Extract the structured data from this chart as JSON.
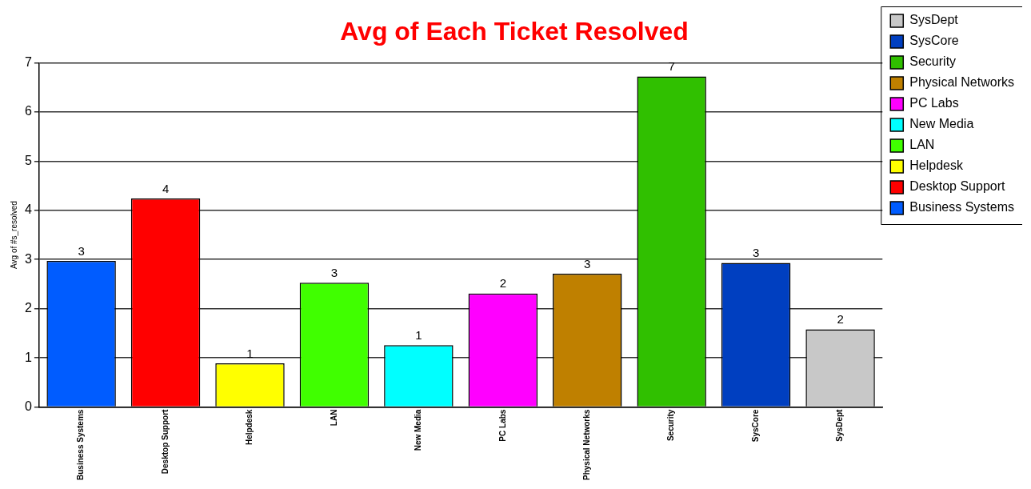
{
  "chart_data": {
    "type": "bar",
    "title": "Avg of Each Ticket Resolved",
    "ylabel": "Avg of #s_resolved",
    "categories": [
      "Business Systems",
      "Desktop Support",
      "Helpdesk",
      "LAN",
      "New Media",
      "PC Labs",
      "Physical Networks",
      "Security",
      "SysCore",
      "SysDept"
    ],
    "series": [
      {
        "name": "Business Systems",
        "color": "#005cff",
        "values": [
          2.97,
          null,
          null,
          null,
          null,
          null,
          null,
          null,
          null,
          null
        ],
        "value_labels": [
          "3",
          null,
          null,
          null,
          null,
          null,
          null,
          null,
          null,
          null
        ]
      },
      {
        "name": "Desktop Support",
        "color": "#ff0000",
        "values": [
          null,
          4.24,
          null,
          null,
          null,
          null,
          null,
          null,
          null,
          null
        ],
        "value_labels": [
          null,
          "4",
          null,
          null,
          null,
          null,
          null,
          null,
          null,
          null
        ]
      },
      {
        "name": "Helpdesk",
        "color": "#ffff00",
        "values": [
          null,
          null,
          0.89,
          null,
          null,
          null,
          null,
          null,
          null,
          null
        ],
        "value_labels": [
          null,
          null,
          "1",
          null,
          null,
          null,
          null,
          null,
          null,
          null
        ]
      },
      {
        "name": "LAN",
        "color": "#40ff00",
        "values": [
          null,
          null,
          null,
          2.53,
          null,
          null,
          null,
          null,
          null,
          null
        ],
        "value_labels": [
          null,
          null,
          null,
          "3",
          null,
          null,
          null,
          null,
          null,
          null
        ]
      },
      {
        "name": "New Media",
        "color": "#00ffff",
        "values": [
          null,
          null,
          null,
          null,
          1.26,
          null,
          null,
          null,
          null,
          null
        ],
        "value_labels": [
          null,
          null,
          null,
          null,
          "1",
          null,
          null,
          null,
          null,
          null
        ]
      },
      {
        "name": "PC Labs",
        "color": "#ff00ff",
        "values": [
          null,
          null,
          null,
          null,
          null,
          2.31,
          null,
          null,
          null,
          null
        ],
        "value_labels": [
          null,
          null,
          null,
          null,
          null,
          "2",
          null,
          null,
          null,
          null
        ]
      },
      {
        "name": "Physical Networks",
        "color": "#bf8000",
        "values": [
          null,
          null,
          null,
          null,
          null,
          null,
          2.71,
          null,
          null,
          null
        ],
        "value_labels": [
          null,
          null,
          null,
          null,
          null,
          null,
          "3",
          null,
          null,
          null
        ]
      },
      {
        "name": "Security",
        "color": "#30c000",
        "values": [
          null,
          null,
          null,
          null,
          null,
          null,
          null,
          6.72,
          null,
          null
        ],
        "value_labels": [
          null,
          null,
          null,
          null,
          null,
          null,
          null,
          "7",
          null,
          null
        ]
      },
      {
        "name": "SysCore",
        "color": "#003fc0",
        "values": [
          null,
          null,
          null,
          null,
          null,
          null,
          null,
          null,
          2.93,
          null
        ],
        "value_labels": [
          null,
          null,
          null,
          null,
          null,
          null,
          null,
          null,
          "3",
          null
        ]
      },
      {
        "name": "SysDept",
        "color": "#c8c8c8",
        "values": [
          null,
          null,
          null,
          null,
          null,
          null,
          null,
          null,
          null,
          1.58
        ],
        "value_labels": [
          null,
          null,
          null,
          null,
          null,
          null,
          null,
          null,
          null,
          "2"
        ]
      }
    ],
    "ylim": [
      0,
      7
    ],
    "yticks": [
      0,
      1,
      2,
      3,
      4,
      5,
      6,
      7
    ],
    "grid": "y",
    "legend": "top right"
  }
}
